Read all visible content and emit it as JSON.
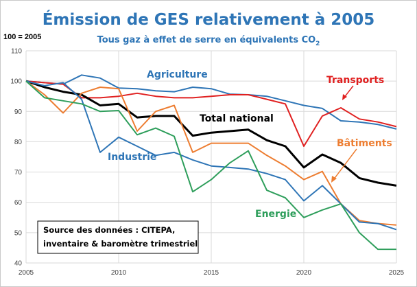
{
  "chart_data": {
    "type": "line",
    "title": "Émission de GES relativement à 2005",
    "subtitle": "Tous gaz à effet de serre en équivalents CO",
    "subtitle_subscript": "2",
    "ylabel": "100 = 2005",
    "xlim": [
      2005,
      2025
    ],
    "ylim": [
      40,
      110
    ],
    "x_ticks": [
      "2005",
      "2010",
      "2015",
      "2020",
      "2025"
    ],
    "y_ticks": [
      "40",
      "50",
      "60",
      "70",
      "80",
      "90",
      "100",
      "110"
    ],
    "grid": true,
    "annotation": [
      "Source des données : CITEPA,",
      "inventaire & baromètre trimestriel"
    ],
    "series": [
      {
        "name": "Agriculture",
        "color": "#2e75b6",
        "x": [
          2005,
          2006,
          2007,
          2008,
          2009,
          2010,
          2011,
          2012,
          2013,
          2014,
          2015,
          2016,
          2017,
          2018,
          2019,
          2020,
          2021,
          2022,
          2023,
          2024,
          2025
        ],
        "values": [
          100,
          99.5,
          99,
          102,
          101,
          97.7,
          97.5,
          96.8,
          96.5,
          98,
          97.5,
          95.7,
          95.5,
          95,
          93.5,
          92,
          91,
          86.9,
          86.5,
          85.7,
          84.2
        ]
      },
      {
        "name": "Transports",
        "color": "#e02020",
        "x": [
          2005,
          2006,
          2007,
          2008,
          2009,
          2010,
          2011,
          2012,
          2013,
          2014,
          2015,
          2016,
          2017,
          2018,
          2019,
          2020,
          2021,
          2022,
          2023,
          2024,
          2025
        ],
        "values": [
          100,
          99.5,
          99,
          94.5,
          94.5,
          95,
          96,
          95,
          94.5,
          94.5,
          95,
          95.5,
          95.5,
          94,
          92.5,
          78.5,
          88.5,
          91.2,
          87.5,
          86.5,
          85
        ]
      },
      {
        "name": "Total national",
        "color": "#000000",
        "x": [
          2005,
          2006,
          2007,
          2008,
          2009,
          2010,
          2011,
          2012,
          2013,
          2014,
          2015,
          2016,
          2017,
          2018,
          2019,
          2020,
          2021,
          2022,
          2023,
          2024,
          2025
        ],
        "values": [
          100,
          98,
          96.5,
          95.5,
          92,
          92.5,
          88,
          88.5,
          88.5,
          82,
          83,
          83.5,
          84,
          80.5,
          78.5,
          71.5,
          75.8,
          73,
          68,
          66.5,
          65.5
        ]
      },
      {
        "name": "Bâtiments",
        "color": "#ed7d31",
        "x": [
          2005,
          2006,
          2007,
          2008,
          2009,
          2010,
          2011,
          2012,
          2013,
          2014,
          2015,
          2016,
          2017,
          2018,
          2019,
          2020,
          2021,
          2022,
          2023,
          2024,
          2025
        ],
        "values": [
          100,
          95.5,
          89.5,
          96,
          98,
          97.5,
          83.5,
          90,
          92,
          76.5,
          79.5,
          79.5,
          79.5,
          75.5,
          72,
          67.5,
          70.2,
          59.5,
          54,
          53,
          52.5
        ]
      },
      {
        "name": "Industrie",
        "color": "#2e75b6",
        "x": [
          2005,
          2006,
          2007,
          2008,
          2009,
          2010,
          2011,
          2012,
          2013,
          2014,
          2015,
          2016,
          2017,
          2018,
          2019,
          2020,
          2021,
          2022,
          2023,
          2024,
          2025
        ],
        "values": [
          100,
          98.5,
          99.5,
          94,
          76.5,
          81.5,
          78.5,
          75.5,
          76.5,
          74,
          72,
          71.5,
          71,
          69.5,
          67.5,
          60.5,
          65.5,
          59.5,
          53.5,
          53,
          51
        ]
      },
      {
        "name": "Energie",
        "color": "#2e9e5b",
        "x": [
          2005,
          2006,
          2007,
          2008,
          2009,
          2010,
          2011,
          2012,
          2013,
          2014,
          2015,
          2016,
          2017,
          2018,
          2019,
          2020,
          2021,
          2022,
          2023,
          2024,
          2025
        ],
        "values": [
          100,
          94.5,
          93.5,
          92.5,
          90,
          90.3,
          82.3,
          84.5,
          81.8,
          63.5,
          67.5,
          73,
          77,
          64,
          61.5,
          55,
          57.5,
          59.5,
          50,
          44.5,
          44.5
        ]
      }
    ]
  }
}
